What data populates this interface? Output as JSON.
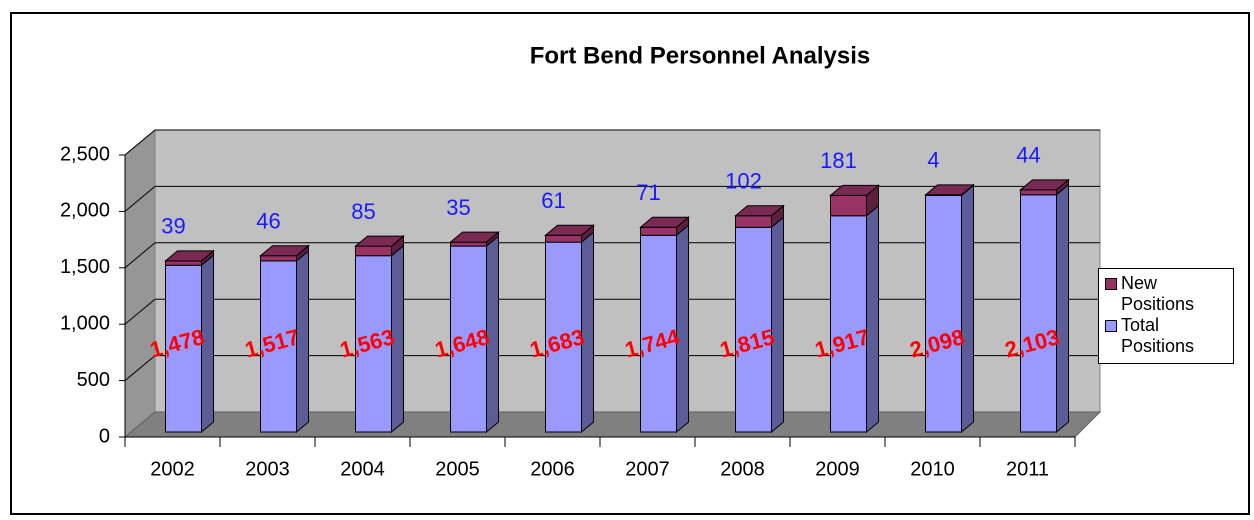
{
  "chart_data": {
    "type": "bar3d_stacked",
    "title": "Fort Bend Personnel Analysis",
    "categories": [
      "2002",
      "2003",
      "2004",
      "2005",
      "2006",
      "2007",
      "2008",
      "2009",
      "2010",
      "2011"
    ],
    "series": [
      {
        "name": "Total Positions",
        "color": "#9999ff",
        "label_color": "#ff0000",
        "values": [
          1478,
          1517,
          1563,
          1648,
          1683,
          1744,
          1815,
          1917,
          2098,
          2103
        ],
        "value_labels": [
          "1,478",
          "1,517",
          "1,563",
          "1,648",
          "1,683",
          "1,744",
          "1,815",
          "1,917",
          "2,098",
          "2,103"
        ]
      },
      {
        "name": "New Positions",
        "color": "#993366",
        "label_color": "#1a1aff",
        "values": [
          39,
          46,
          85,
          35,
          61,
          71,
          102,
          181,
          4,
          44
        ]
      }
    ],
    "ylim": [
      0,
      2500
    ],
    "yticks": [
      0,
      500,
      {
        "value": 1000,
        "label": "1,000"
      },
      {
        "value": 1500,
        "label": "1,500"
      },
      {
        "value": 2000,
        "label": "2,000"
      },
      {
        "value": 2500,
        "label": "2,500"
      }
    ],
    "grid": true,
    "legend": "right"
  }
}
